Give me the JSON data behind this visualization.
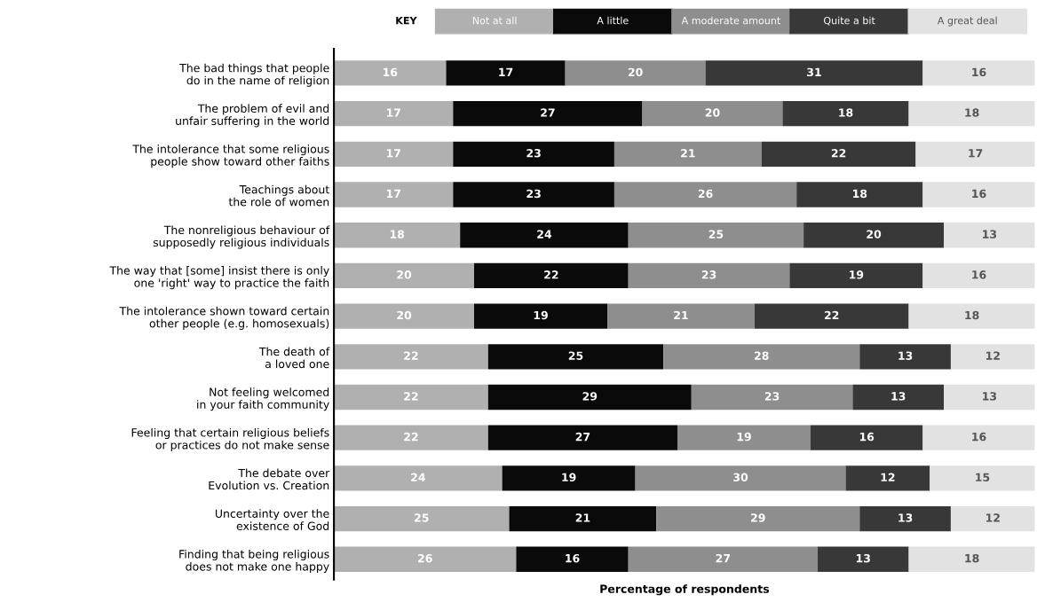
{
  "chart_data": {
    "type": "bar",
    "orientation": "horizontal",
    "stacked": true,
    "data_labels": true,
    "legend": "top",
    "legend_title": "KEY",
    "grid": false,
    "tick_labels": "y",
    "xlabel": "Percentage of respondents",
    "xlim": [
      0,
      100
    ],
    "categories": [
      "The bad things that people\ndo in the name of religion",
      "The problem of evil and\nunfair suffering in the world",
      "The intolerance that some religious\npeople show toward other faiths",
      "Teachings about\nthe role of women",
      "The nonreligious behaviour of\nsupposedly religious individuals",
      "The way that [some] insist there is only\none 'right' way to practice the faith",
      "The intolerance shown toward certain\nother people (e.g. homosexuals)",
      "The death of\na loved one",
      "Not feeling welcomed\nin your faith community",
      "Feeling that certain religious beliefs\nor practices do not make sense",
      "The debate over\nEvolution vs. Creation",
      "Uncertainty over the\nexistence of God",
      "Finding that being religious\ndoes not make one happy"
    ],
    "series": [
      {
        "name": "Not at all",
        "color": "#b0b0b0",
        "values": [
          16,
          17,
          17,
          17,
          18,
          20,
          20,
          22,
          22,
          22,
          24,
          25,
          26
        ]
      },
      {
        "name": "A little",
        "color": "#0a0a0a",
        "values": [
          17,
          27,
          23,
          23,
          24,
          22,
          19,
          25,
          29,
          27,
          19,
          21,
          16
        ]
      },
      {
        "name": "A moderate amount",
        "color": "#8e8e8e",
        "values": [
          20,
          20,
          21,
          26,
          25,
          23,
          21,
          28,
          23,
          19,
          30,
          29,
          27
        ]
      },
      {
        "name": "Quite a bit",
        "color": "#383838",
        "values": [
          31,
          18,
          22,
          18,
          20,
          19,
          22,
          13,
          13,
          16,
          12,
          13,
          13
        ]
      },
      {
        "name": "A great deal",
        "color": "#e2e2e2",
        "values": [
          16,
          18,
          17,
          16,
          13,
          16,
          18,
          12,
          13,
          16,
          15,
          12,
          18
        ]
      }
    ]
  }
}
